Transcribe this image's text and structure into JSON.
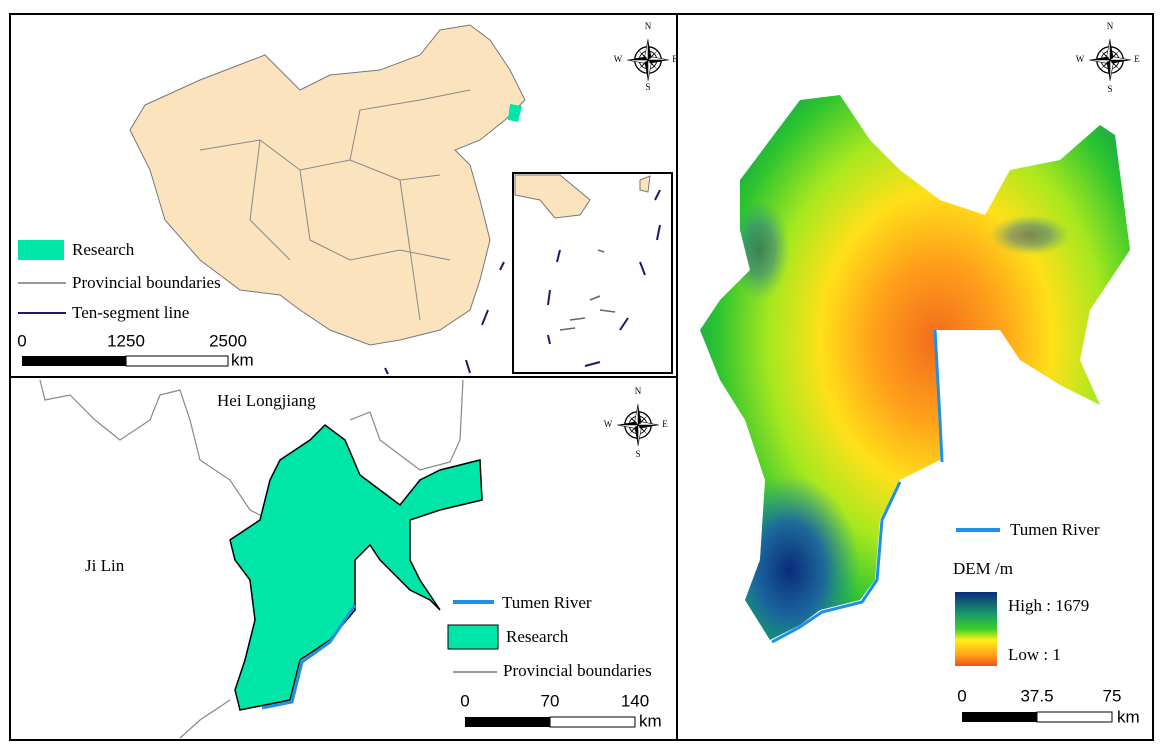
{
  "top_left": {
    "compass": {
      "n": "N",
      "w": "W",
      "e": "E",
      "s": "S"
    },
    "legend": [
      "Research",
      "Provincial boundaries",
      "Ten-segment line"
    ],
    "scale": {
      "ticks": [
        "0",
        "1250",
        "2500"
      ],
      "unit": "km"
    }
  },
  "bottom_left": {
    "labels": [
      "Hei Longjiang",
      "Ji Lin"
    ],
    "compass": {
      "n": "N",
      "w": "W",
      "e": "E",
      "s": "S"
    },
    "legend": [
      "Tumen River",
      "Research",
      "Provincial boundaries"
    ],
    "scale": {
      "ticks": [
        "0",
        "70",
        "140"
      ],
      "unit": "km"
    }
  },
  "right": {
    "compass": {
      "n": "N",
      "w": "W",
      "e": "E",
      "s": "S"
    },
    "legend": {
      "river": "Tumen River",
      "dem_title": "DEM /m",
      "high": "High : 1679",
      "low": "Low : 1"
    },
    "scale": {
      "ticks": [
        "0",
        "37.5",
        "75"
      ],
      "unit": "km"
    }
  }
}
